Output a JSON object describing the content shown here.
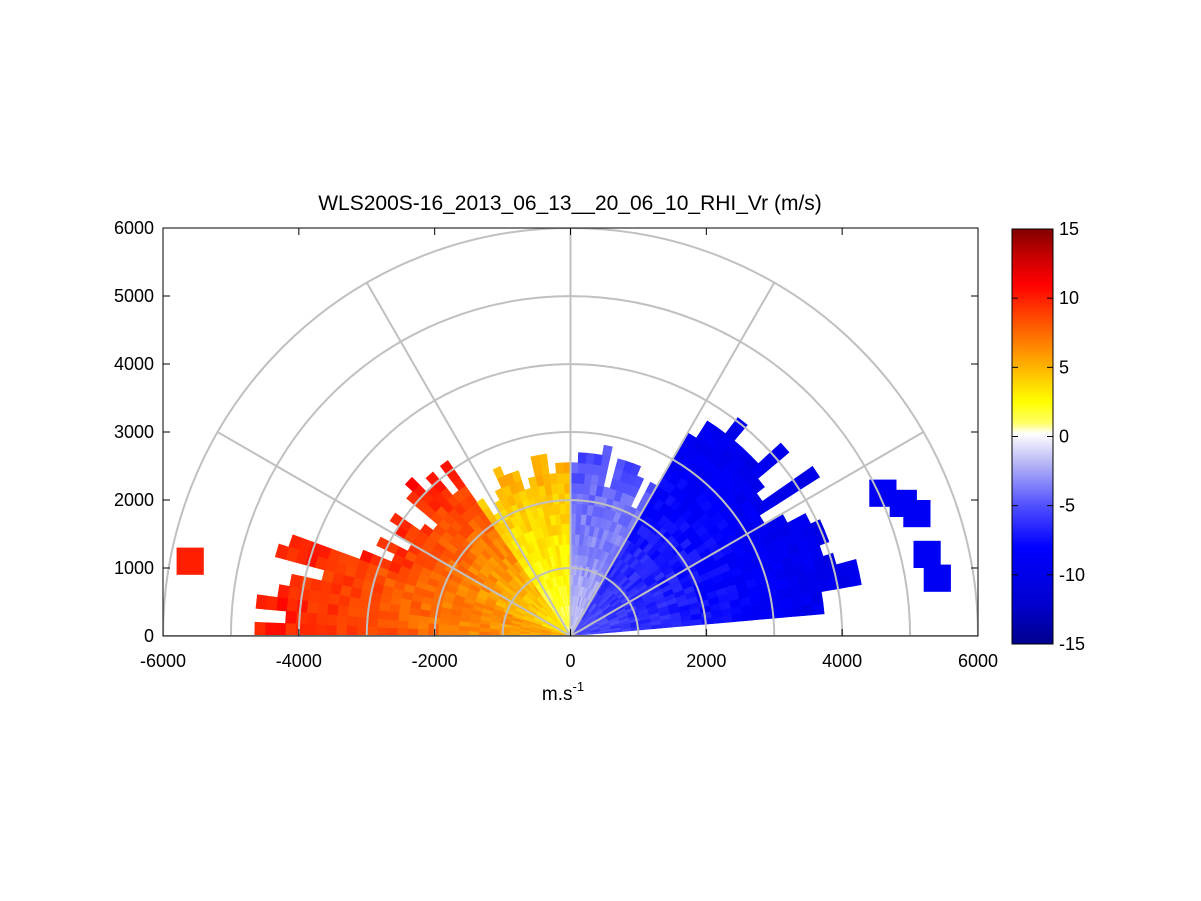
{
  "chart_data": {
    "type": "heatmap",
    "subtype": "polar-rhi-sector",
    "title": "WLS200S-16_2013_06_13__20_06_10_RHI_Vr (m/s)",
    "xlabel_base": "m.s",
    "xlabel_exp": "-1",
    "ylabel": "",
    "xlim": [
      -6000,
      6000
    ],
    "ylim": [
      0,
      6000
    ],
    "x_ticks": [
      "-6000",
      "-4000",
      "-2000",
      "0",
      "2000",
      "4000",
      "6000"
    ],
    "y_ticks": [
      "0",
      "1000",
      "2000",
      "3000",
      "4000",
      "5000",
      "6000"
    ],
    "polar_grid": {
      "range_rings": [
        1000,
        2000,
        3000,
        4000,
        5000,
        6000
      ],
      "spokes_deg": [
        0,
        30,
        60,
        90,
        120,
        150,
        180
      ]
    },
    "colorbar": {
      "range": [
        -15,
        15
      ],
      "ticks": [
        "15",
        "10",
        "5",
        "0",
        "-5",
        "-10",
        "-15"
      ],
      "colormap": "blue-white-yellow-red",
      "stops": [
        {
          "v": -15,
          "color": "#00008c"
        },
        {
          "v": -12,
          "color": "#0000d2"
        },
        {
          "v": -8,
          "color": "#0000ff"
        },
        {
          "v": -5,
          "color": "#5050ff"
        },
        {
          "v": -2,
          "color": "#b4b4f5"
        },
        {
          "v": -0.5,
          "color": "#e6e6fa"
        },
        {
          "v": 0.2,
          "color": "#ffffff"
        },
        {
          "v": 1,
          "color": "#ffff64"
        },
        {
          "v": 2.5,
          "color": "#ffff00"
        },
        {
          "v": 5,
          "color": "#ffb400"
        },
        {
          "v": 8,
          "color": "#ff5a00"
        },
        {
          "v": 11,
          "color": "#ff0000"
        },
        {
          "v": 13,
          "color": "#c80000"
        },
        {
          "v": 15,
          "color": "#820000"
        }
      ]
    },
    "sectors": [
      {
        "name": "positive-left",
        "az_start": 160,
        "az_end": 180,
        "r_max": 4200,
        "v_near": 5,
        "v_far": 10
      },
      {
        "name": "positive-left-upper",
        "az_start": 125,
        "az_end": 160,
        "r_max": 3000,
        "v_near": 3,
        "v_far": 10
      },
      {
        "name": "positive-near-vertical",
        "az_start": 90,
        "az_end": 125,
        "r_max": 2400,
        "v_near": 1,
        "v_far": 5
      },
      {
        "name": "negative-near-vertical",
        "az_start": 60,
        "az_end": 90,
        "r_max": 2500,
        "v_near": -1.5,
        "v_far": -5
      },
      {
        "name": "negative-right",
        "az_start": 5,
        "az_end": 60,
        "r_max": 4000,
        "v_near": -5,
        "v_far": -10
      }
    ],
    "isolated_patches": [
      {
        "x": -5600,
        "y": 1100,
        "v": 10
      },
      {
        "x": 4600,
        "y": 2100,
        "v": -9
      },
      {
        "x": 4900,
        "y": 1950,
        "v": -9
      },
      {
        "x": 5100,
        "y": 1800,
        "v": -9
      },
      {
        "x": 5250,
        "y": 1200,
        "v": -9
      },
      {
        "x": 5400,
        "y": 850,
        "v": -9
      }
    ]
  }
}
